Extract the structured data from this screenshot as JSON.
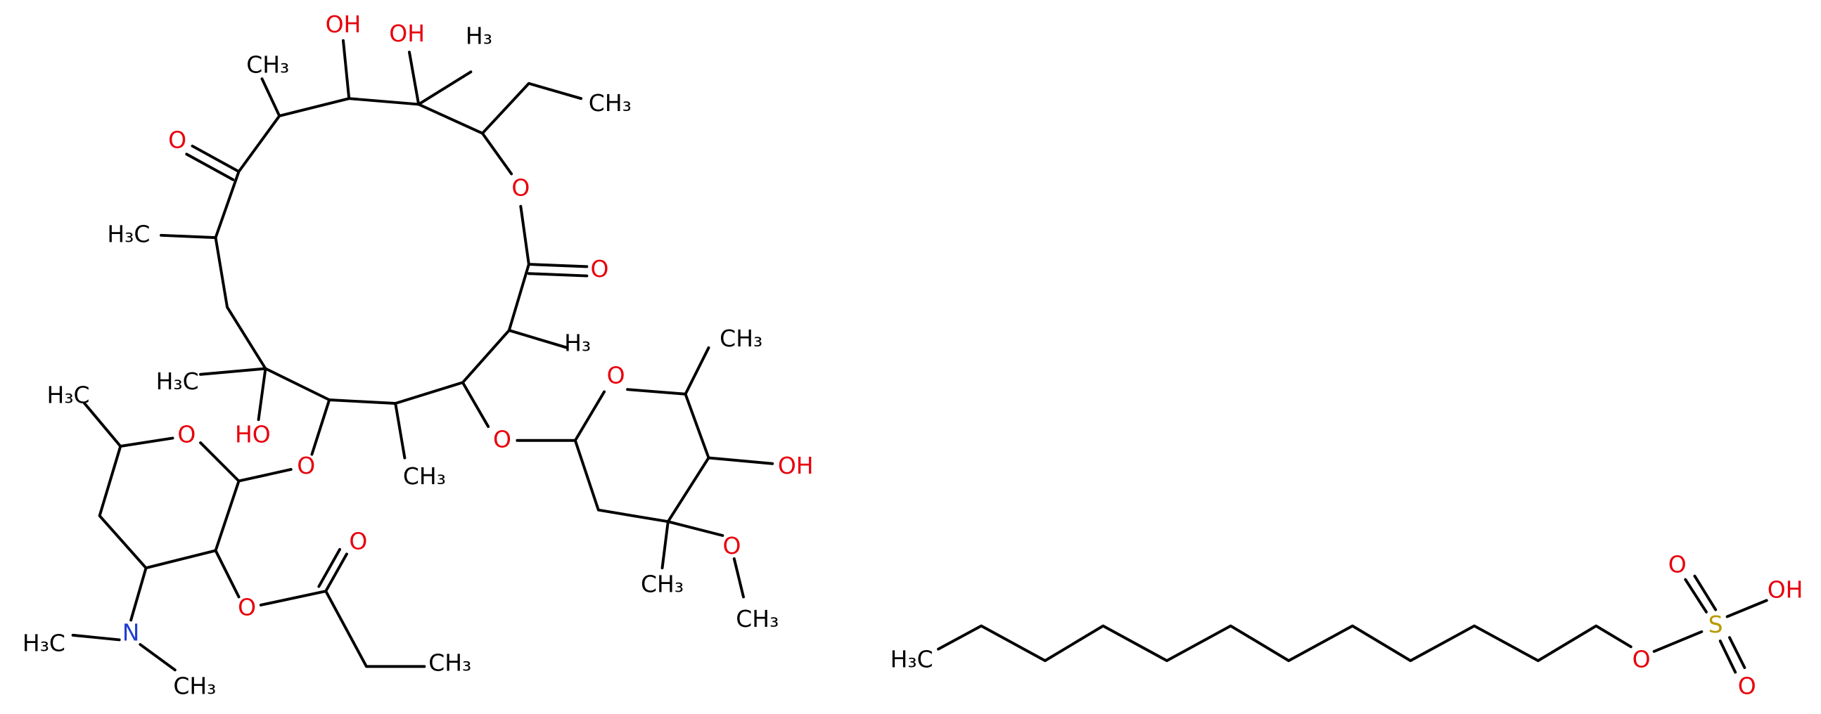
{
  "labels": [
    "CH₃",
    "OH",
    "OH",
    "H₃",
    "CH₃",
    "O",
    "O",
    "O",
    "H₃C",
    "H₃",
    "CH₃",
    "O",
    "H₃C",
    "H₃C",
    "O",
    "HO",
    "O",
    "O",
    "CH₃",
    "OH",
    "O",
    "O",
    "O",
    "CH₃",
    "CH₃",
    "N",
    "H₃C",
    "CH₃",
    "CH₃",
    "H₃C",
    "O",
    "OH",
    "S",
    "O",
    "O"
  ]
}
